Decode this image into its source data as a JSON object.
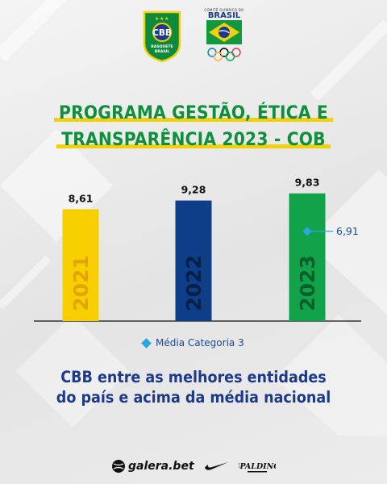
{
  "header": {
    "cbb_logo": {
      "initials": "CBB",
      "line1": "BASQUETE",
      "line2": "BRASIL"
    },
    "cob_logo": {
      "small_text": "COMITÊ OLÍMPICO DO",
      "brasil_text": "BRASIL"
    }
  },
  "title": {
    "line1": "PROGRAMA GESTÃO, ÉTICA E",
    "line2": "TRANSPARÊNCIA 2023 - COB"
  },
  "chart_data": {
    "type": "bar",
    "categories": [
      "2021",
      "2022",
      "2023"
    ],
    "values": [
      8.61,
      9.28,
      9.83
    ],
    "value_labels": [
      "8,61",
      "9,28",
      "9,83"
    ],
    "bar_colors": [
      "#f7cf00",
      "#0e3e87",
      "#12a24a"
    ],
    "year_label_colors": [
      "#e3a500",
      "#0a1f47",
      "#07602b"
    ],
    "ylim": [
      0,
      10
    ],
    "reference": {
      "name": "Média Categoria 3",
      "value": 6.91,
      "label": "6,91",
      "category": "2023",
      "color": "#2aa7e0"
    },
    "legend": "bottom-center",
    "grid": false
  },
  "legend": {
    "label": "Média Categoria 3"
  },
  "footer": {
    "line1": "CBB entre as melhores entidades",
    "line2": "do país e acima da média nacional"
  },
  "sponsors": {
    "galera": "galera.bet",
    "spalding": "SPALDING"
  },
  "colors": {
    "green": "#0f8f3c",
    "yellow": "#f2d10b",
    "navy": "#1d3a8a",
    "reference": "#2aa7e0"
  },
  "icons": [
    "cbb-logo-icon",
    "cob-logo-icon",
    "olympic-rings-icon",
    "galera-ball-icon",
    "nike-swoosh-icon",
    "spalding-logo-icon"
  ]
}
